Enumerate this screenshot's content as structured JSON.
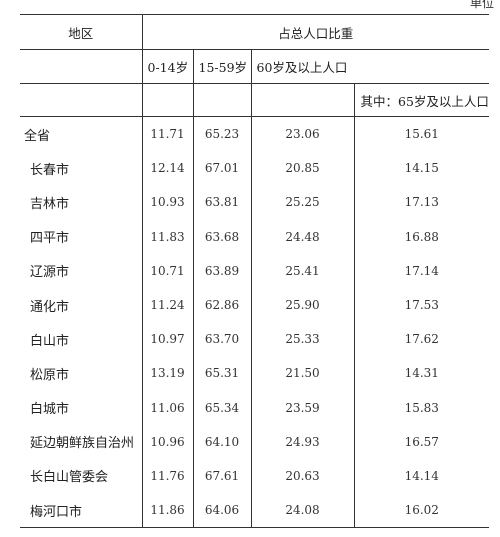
{
  "unit_label": "单位",
  "header": {
    "region": "地区",
    "share": "占总人口比重",
    "age_0_14": "0-14岁",
    "age_15_59": "15-59岁",
    "age_60_plus": "60岁及以上人口",
    "age_65_plus": "其中：65岁及以上人口"
  },
  "rows": [
    {
      "region": "全省",
      "a": "11.71",
      "b": "65.23",
      "c": "23.06",
      "d": "15.61"
    },
    {
      "region": "长春市",
      "a": "12.14",
      "b": "67.01",
      "c": "20.85",
      "d": "14.15"
    },
    {
      "region": "吉林市",
      "a": "10.93",
      "b": "63.81",
      "c": "25.25",
      "d": "17.13"
    },
    {
      "region": "四平市",
      "a": "11.83",
      "b": "63.68",
      "c": "24.48",
      "d": "16.88"
    },
    {
      "region": "辽源市",
      "a": "10.71",
      "b": "63.89",
      "c": "25.41",
      "d": "17.14"
    },
    {
      "region": "通化市",
      "a": "11.24",
      "b": "62.86",
      "c": "25.90",
      "d": "17.53"
    },
    {
      "region": "白山市",
      "a": "10.97",
      "b": "63.70",
      "c": "25.33",
      "d": "17.62"
    },
    {
      "region": "松原市",
      "a": "13.19",
      "b": "65.31",
      "c": "21.50",
      "d": "14.31"
    },
    {
      "region": "白城市",
      "a": "11.06",
      "b": "65.34",
      "c": "23.59",
      "d": "15.83"
    },
    {
      "region": "延边朝鲜族自治州",
      "a": "10.96",
      "b": "64.10",
      "c": "24.93",
      "d": "16.57"
    },
    {
      "region": "长白山管委会",
      "a": "11.76",
      "b": "67.61",
      "c": "20.63",
      "d": "14.14"
    },
    {
      "region": "梅河口市",
      "a": "11.86",
      "b": "64.06",
      "c": "24.08",
      "d": "16.02"
    }
  ]
}
